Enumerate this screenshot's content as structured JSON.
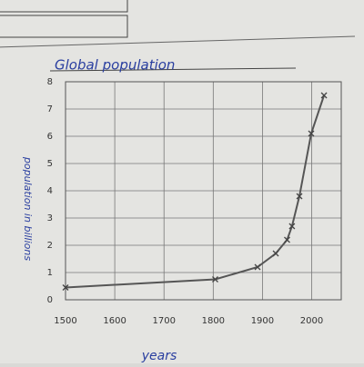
{
  "chart_data": {
    "type": "line",
    "title": "Global population",
    "x_label": "years",
    "y_label": "population in billions",
    "x": [
      1500,
      1804,
      1890,
      1927,
      1950,
      1960,
      1975,
      1999,
      2025
    ],
    "series": [
      {
        "name": "population",
        "color": "#555555",
        "values": [
          0.45,
          0.75,
          1.2,
          1.7,
          2.2,
          2.7,
          3.8,
          6.1,
          7.5
        ]
      }
    ],
    "xlim": [
      1500,
      2060
    ],
    "xticks": [
      1500,
      1600,
      1700,
      1800,
      1900,
      2000
    ],
    "ylim": [
      0,
      8
    ],
    "yticks": [
      0,
      1,
      2,
      3,
      4,
      5,
      6,
      7,
      8
    ],
    "grid": true
  }
}
